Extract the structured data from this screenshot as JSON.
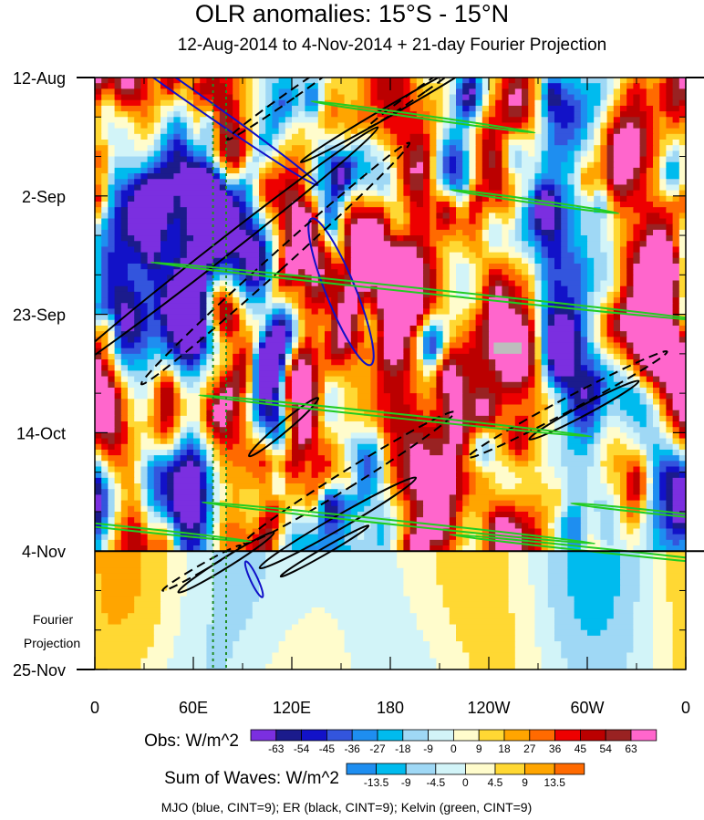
{
  "chart_data": {
    "type": "heatmap",
    "title": "OLR anomalies: 15°S - 15°N",
    "subtitle": "12-Aug-2014 to 4-Nov-2014 + 21-day Fourier Projection",
    "x_ticks": [
      "0",
      "60E",
      "120E",
      "180",
      "120W",
      "60W",
      "0"
    ],
    "x_tick_values": [
      0,
      60,
      120,
      180,
      240,
      300,
      360
    ],
    "xlim": [
      0,
      360
    ],
    "y_ticks": [
      "12-Aug",
      "2-Sep",
      "23-Sep",
      "14-Oct",
      "4-Nov",
      "25-Nov"
    ],
    "y_tick_values": [
      0,
      21,
      42,
      63,
      84,
      105
    ],
    "ylim": [
      0,
      105
    ],
    "projection_start_day": 84,
    "projection_label": [
      "Fourier",
      "Projection"
    ],
    "reference_longitudes": [
      72,
      80
    ],
    "obs_colorbar": {
      "label": "Obs: W/m^2",
      "levels": [
        "-63",
        "-54",
        "-45",
        "-36",
        "-27",
        "-18",
        "-9",
        "0",
        "9",
        "18",
        "27",
        "36",
        "45",
        "54",
        "63"
      ],
      "colors": [
        "#7b2fe0",
        "#1b1b8c",
        "#1212c8",
        "#3355dd",
        "#1e8ef0",
        "#00bbee",
        "#9fd8f5",
        "#d2f4f8",
        "#fffccc",
        "#ffd833",
        "#ffa500",
        "#ff6a00",
        "#ee0000",
        "#bb0000",
        "#992222",
        "#ff66cc"
      ]
    },
    "waves_colorbar": {
      "label": "Sum of Waves: W/m^2",
      "levels": [
        "-13.5",
        "-9",
        "-4.5",
        "0",
        "4.5",
        "9",
        "13.5"
      ],
      "colors": [
        "#1e8ef0",
        "#00bbee",
        "#9fd8f5",
        "#d2f4f8",
        "#fffccc",
        "#ffd833",
        "#ffa500",
        "#ff6a00"
      ]
    },
    "contours": [
      {
        "wave": "MJO",
        "color": "#1010c8",
        "style": "solid",
        "center": [
          150,
          38
        ],
        "semi_axes": [
          9,
          14
        ],
        "angle": -22
      },
      {
        "wave": "MJO",
        "color": "#1010c8",
        "style": "solid",
        "center": [
          57,
          3
        ],
        "semi_axes": [
          4,
          28
        ],
        "angle": -55
      },
      {
        "wave": "MJO",
        "color": "#1010c8",
        "style": "solid",
        "center": [
          97,
          89
        ],
        "semi_axes": [
          2.2,
          3.5
        ],
        "angle": -25
      },
      {
        "wave": "ER",
        "color": "#000000",
        "style": "solid",
        "center": [
          75,
          31
        ],
        "semi_axes": [
          5,
          36
        ],
        "angle": 52
      },
      {
        "wave": "ER",
        "color": "#000000",
        "style": "dashed",
        "center": [
          110,
          33
        ],
        "semi_axes": [
          5,
          32
        ],
        "angle": 48
      },
      {
        "wave": "ER",
        "color": "#000000",
        "style": "solid",
        "center": [
          185,
          5
        ],
        "semi_axes": [
          3,
          20
        ],
        "angle": 60
      },
      {
        "wave": "ER",
        "color": "#000000",
        "style": "dashed",
        "center": [
          120,
          3
        ],
        "semi_axes": [
          2.5,
          14
        ],
        "angle": 55
      },
      {
        "wave": "ER",
        "color": "#000000",
        "style": "dashed",
        "center": [
          200,
          2
        ],
        "semi_axes": [
          2.2,
          12
        ],
        "angle": 55
      },
      {
        "wave": "ER",
        "color": "#000000",
        "style": "dashed",
        "center": [
          155,
          71
        ],
        "semi_axes": [
          5,
          22
        ],
        "angle": 58
      },
      {
        "wave": "ER",
        "color": "#000000",
        "style": "solid",
        "center": [
          148,
          79
        ],
        "semi_axes": [
          4,
          16
        ],
        "angle": 60
      },
      {
        "wave": "ER",
        "color": "#000000",
        "style": "solid",
        "center": [
          140,
          84
        ],
        "semi_axes": [
          2,
          9
        ],
        "angle": 60
      },
      {
        "wave": "ER",
        "color": "#000000",
        "style": "dashed",
        "center": [
          288,
          58
        ],
        "semi_axes": [
          4,
          20
        ],
        "angle": 62
      },
      {
        "wave": "ER",
        "color": "#000000",
        "style": "solid",
        "center": [
          298,
          59
        ],
        "semi_axes": [
          3,
          11
        ],
        "angle": 62
      },
      {
        "wave": "ER",
        "color": "#000000",
        "style": "dashed",
        "center": [
          65,
          87
        ],
        "semi_axes": [
          2,
          8
        ],
        "angle": 60
      },
      {
        "wave": "ER",
        "color": "#000000",
        "style": "solid",
        "center": [
          80,
          86
        ],
        "semi_axes": [
          3,
          10
        ],
        "angle": 58
      },
      {
        "wave": "ER",
        "color": "#000000",
        "style": "solid",
        "center": [
          115,
          62
        ],
        "semi_axes": [
          3,
          8
        ],
        "angle": 50
      },
      {
        "wave": "Kelvin",
        "color": "#22cc22",
        "style": "solid",
        "center": [
          200,
          7
        ],
        "semi_axes": [
          1,
          20
        ],
        "angle": -82
      },
      {
        "wave": "Kelvin",
        "color": "#22cc22",
        "style": "solid",
        "center": [
          205,
          38
        ],
        "semi_axes": [
          1.4,
          50
        ],
        "angle": -84
      },
      {
        "wave": "Kelvin",
        "color": "#22cc22",
        "style": "solid",
        "center": [
          183,
          60
        ],
        "semi_axes": [
          1.3,
          35
        ],
        "angle": -84
      },
      {
        "wave": "Kelvin",
        "color": "#22cc22",
        "style": "solid",
        "center": [
          185,
          79
        ],
        "semi_axes": [
          1.3,
          35
        ],
        "angle": -84
      },
      {
        "wave": "Kelvin",
        "color": "#22cc22",
        "style": "solid",
        "center": [
          312,
          84
        ],
        "semi_axes": [
          1.2,
          28
        ],
        "angle": -84
      },
      {
        "wave": "Kelvin",
        "color": "#22cc22",
        "style": "solid",
        "center": [
          20,
          80
        ],
        "semi_axes": [
          1.1,
          22
        ],
        "angle": -84
      },
      {
        "wave": "Kelvin",
        "color": "#22cc22",
        "style": "solid",
        "center": [
          268,
          22
        ],
        "semi_axes": [
          1,
          15
        ],
        "angle": -82
      },
      {
        "wave": "Kelvin",
        "color": "#22cc22",
        "style": "solid",
        "center": [
          338,
          77
        ],
        "semi_axes": [
          1,
          14
        ],
        "angle": -84
      }
    ],
    "missing_patch": {
      "lon": [
        243,
        260
      ],
      "day": [
        47,
        49
      ]
    }
  },
  "footnote": "MJO (blue, CINT=9); ER (black, CINT=9); Kelvin (green, CINT=9)"
}
